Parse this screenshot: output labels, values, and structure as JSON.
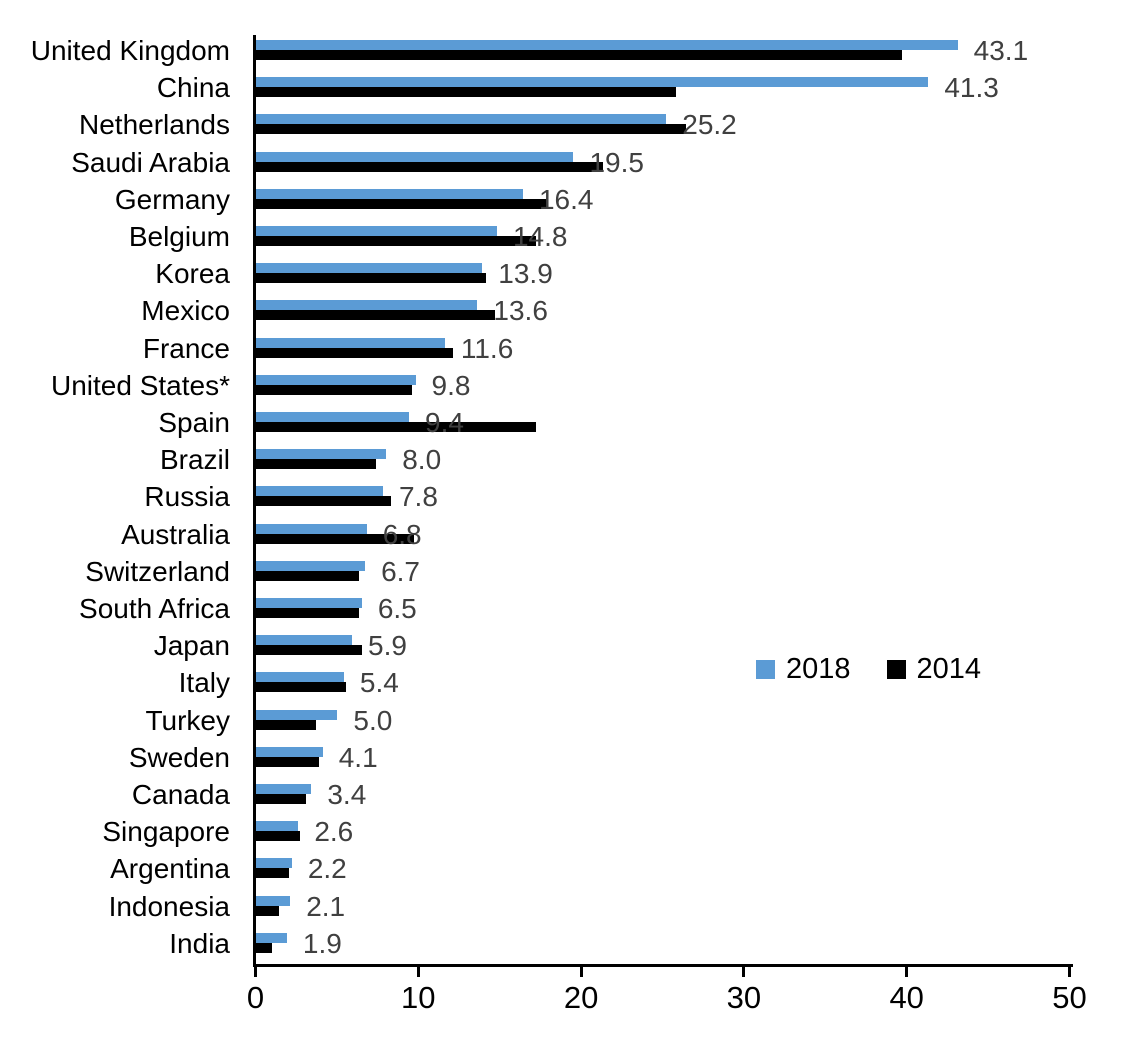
{
  "chart_data": {
    "type": "bar",
    "orientation": "horizontal",
    "title": "",
    "xlabel": "",
    "ylabel": "",
    "xlim": [
      0,
      50
    ],
    "x_ticks": [
      "0",
      "10",
      "20",
      "30",
      "40",
      "50"
    ],
    "grid": "off",
    "legend_position": "middle-right",
    "categories": [
      "United Kingdom",
      "China",
      "Netherlands",
      "Saudi Arabia",
      "Germany",
      "Belgium",
      "Korea",
      "Mexico",
      "France",
      "United States*",
      "Spain",
      "Brazil",
      "Russia",
      "Australia",
      "Switzerland",
      "South Africa",
      "Japan",
      "Italy",
      "Turkey",
      "Sweden",
      "Canada",
      "Singapore",
      "Argentina",
      "Indonesia",
      "India"
    ],
    "series": [
      {
        "name": "2018",
        "color": "#5B9BD5",
        "values": [
          43.1,
          41.3,
          25.2,
          19.5,
          16.4,
          14.8,
          13.9,
          13.6,
          11.6,
          9.8,
          9.4,
          8.0,
          7.8,
          6.8,
          6.7,
          6.5,
          5.9,
          5.4,
          5.0,
          4.1,
          3.4,
          2.6,
          2.2,
          2.1,
          1.9
        ],
        "data_labels": [
          "43.1",
          "41.3",
          "25.2",
          "19.5",
          "16.4",
          "14.8",
          "13.9",
          "13.6",
          "11.6",
          "9.8",
          "9.4",
          "8.0",
          "7.8",
          "6.8",
          "6.7",
          "6.5",
          "5.9",
          "5.4",
          "5.0",
          "4.1",
          "3.4",
          "2.6",
          "2.2",
          "2.1",
          "1.9"
        ]
      },
      {
        "name": "2014",
        "color": "#000000",
        "values": [
          39.7,
          25.8,
          26.4,
          21.3,
          17.9,
          17.2,
          14.1,
          14.7,
          12.1,
          9.6,
          17.2,
          7.4,
          8.3,
          9.7,
          6.3,
          6.3,
          6.5,
          5.5,
          3.7,
          3.9,
          3.1,
          2.7,
          2.0,
          1.4,
          1.0
        ],
        "data_labels": []
      }
    ]
  },
  "legend": {
    "items": [
      {
        "label": "2018",
        "color": "#5B9BD5"
      },
      {
        "label": "2014",
        "color": "#000000"
      }
    ]
  },
  "colors": {
    "background": "#ffffff",
    "axis": "#000000",
    "value_label": "#404040",
    "category_label": "#000000",
    "series_2018": "#5B9BD5",
    "series_2014": "#000000"
  }
}
